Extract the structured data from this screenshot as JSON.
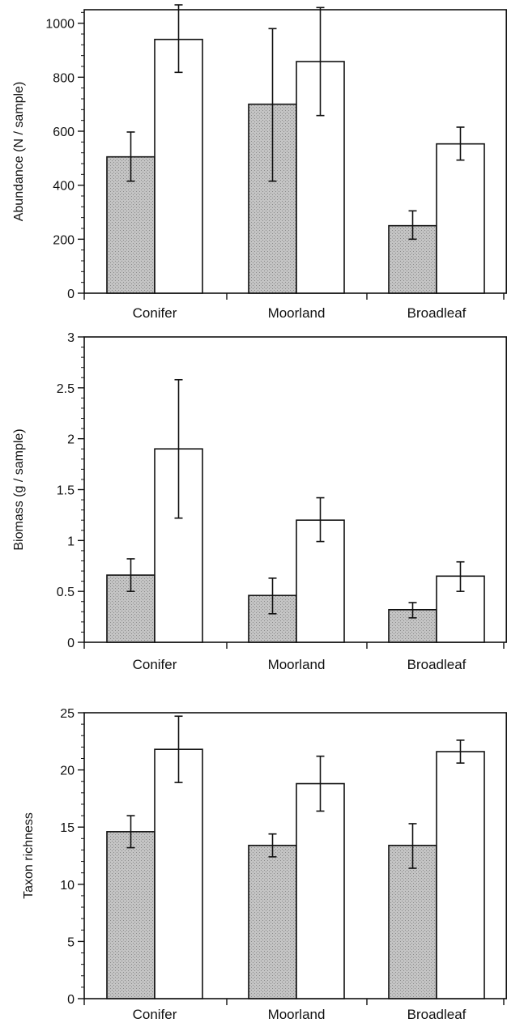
{
  "chart_data": [
    {
      "type": "bar",
      "categories": [
        "Conifer",
        "Moorland",
        "Broadleaf"
      ],
      "ylabel": "Abundance (N / sample)",
      "ylim": [
        0,
        1050
      ],
      "yticks": [
        0,
        200,
        400,
        600,
        800,
        1000
      ],
      "grid": false,
      "series": [
        {
          "values": [
            505,
            700,
            250
          ],
          "err_low": [
            415,
            415,
            200
          ],
          "err_high": [
            597,
            980,
            305
          ],
          "color": "#b9b9b9"
        },
        {
          "values": [
            940,
            858,
            553
          ],
          "err_low": [
            818,
            658,
            493
          ],
          "err_high": [
            1068,
            1058,
            615
          ],
          "color": "#ffffff"
        }
      ]
    },
    {
      "type": "bar",
      "categories": [
        "Conifer",
        "Moorland",
        "Broadleaf"
      ],
      "ylabel": "Biomass (g / sample)",
      "ylim": [
        0,
        3
      ],
      "yticks": [
        0,
        0.5,
        1,
        1.5,
        2,
        2.5,
        3
      ],
      "grid": false,
      "series": [
        {
          "values": [
            0.66,
            0.46,
            0.32
          ],
          "err_low": [
            0.5,
            0.28,
            0.24
          ],
          "err_high": [
            0.82,
            0.63,
            0.39
          ],
          "color": "#b9b9b9"
        },
        {
          "values": [
            1.9,
            1.2,
            0.65
          ],
          "err_low": [
            1.22,
            0.99,
            0.5
          ],
          "err_high": [
            2.58,
            1.42,
            0.79
          ],
          "color": "#ffffff"
        }
      ]
    },
    {
      "type": "bar",
      "categories": [
        "Conifer",
        "Moorland",
        "Broadleaf"
      ],
      "ylabel": "Taxon richness",
      "ylim": [
        0,
        25
      ],
      "yticks": [
        0,
        5,
        10,
        15,
        20,
        25
      ],
      "grid": false,
      "series": [
        {
          "values": [
            14.6,
            13.4,
            13.4
          ],
          "err_low": [
            13.2,
            12.4,
            11.4
          ],
          "err_high": [
            16,
            14.4,
            15.3
          ],
          "color": "#b9b9b9"
        },
        {
          "values": [
            21.8,
            18.8,
            21.6
          ],
          "err_low": [
            18.9,
            16.4,
            20.6
          ],
          "err_high": [
            24.7,
            21.2,
            22.6
          ],
          "color": "#ffffff"
        }
      ]
    }
  ]
}
